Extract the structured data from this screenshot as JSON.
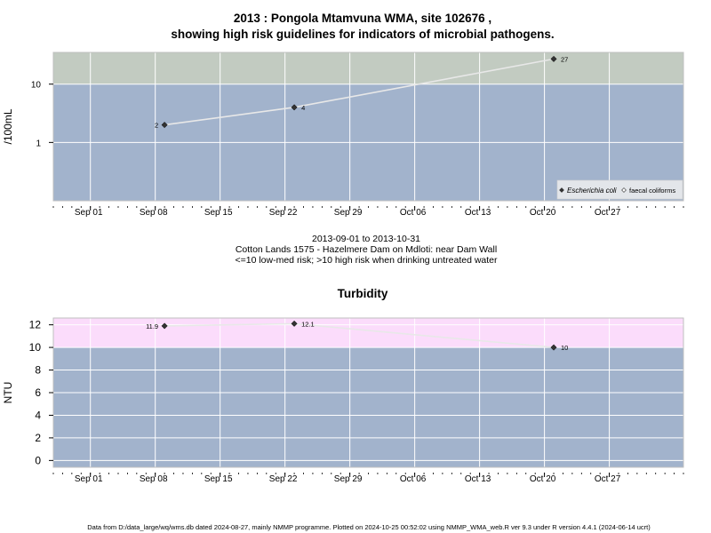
{
  "chart_data": [
    {
      "type": "line",
      "title": "2013 : Pongola Mtamvuna WMA, site 102676 ,",
      "subtitle": "showing high risk guidelines for indicators of microbial pathogens.",
      "ylabel": "/100mL",
      "yscale": "log",
      "ylim": [
        0.1,
        35
      ],
      "yticks": [
        1,
        10
      ],
      "xlim": [
        "2013-08-28",
        "2013-11-04"
      ],
      "xticks": [
        {
          "date": "2013-09-01",
          "label": "Sep 01"
        },
        {
          "date": "2013-09-08",
          "label": "Sep 08"
        },
        {
          "date": "2013-09-15",
          "label": "Sep 15"
        },
        {
          "date": "2013-09-22",
          "label": "Sep 22"
        },
        {
          "date": "2013-09-29",
          "label": "Sep 29"
        },
        {
          "date": "2013-10-06",
          "label": "Oct 06"
        },
        {
          "date": "2013-10-13",
          "label": "Oct 13"
        },
        {
          "date": "2013-10-20",
          "label": "Oct 20"
        },
        {
          "date": "2013-10-27",
          "label": "Oct 27"
        }
      ],
      "bands": [
        {
          "from": 0.1,
          "to": 10,
          "color": "#a2b3cc"
        },
        {
          "from": 10,
          "to": 35,
          "color": "#c2cbc1"
        }
      ],
      "series": [
        {
          "name": "Escherichia coli",
          "x": [
            "2013-09-09",
            "2013-09-23",
            "2013-10-21"
          ],
          "values": [
            2,
            4,
            27
          ],
          "labels": [
            "2",
            "4",
            "27"
          ]
        }
      ],
      "legend": {
        "position": "bottom-right",
        "entries": [
          {
            "label": "Escherichia coli",
            "marker": "filled-diamond"
          },
          {
            "label": "faecal coliforms",
            "marker": "open-diamond"
          }
        ]
      },
      "caption_lines": [
        "2013-09-01 to 2013-10-31",
        "Cotton Lands 1575 - Hazelmere Dam on Mdloti: near Dam Wall",
        "<=10 low-med risk; >10 high risk when drinking untreated water"
      ]
    },
    {
      "type": "line",
      "title": "Turbidity",
      "ylabel": "NTU",
      "ylim": [
        -0.6,
        12.6
      ],
      "yticks": [
        0,
        2,
        4,
        6,
        8,
        10,
        12
      ],
      "xlim": [
        "2013-08-28",
        "2013-11-04"
      ],
      "xticks": [
        {
          "date": "2013-09-01",
          "label": "Sep 01"
        },
        {
          "date": "2013-09-08",
          "label": "Sep 08"
        },
        {
          "date": "2013-09-15",
          "label": "Sep 15"
        },
        {
          "date": "2013-09-22",
          "label": "Sep 22"
        },
        {
          "date": "2013-09-29",
          "label": "Sep 29"
        },
        {
          "date": "2013-10-06",
          "label": "Oct 06"
        },
        {
          "date": "2013-10-13",
          "label": "Oct 13"
        },
        {
          "date": "2013-10-20",
          "label": "Oct 20"
        },
        {
          "date": "2013-10-27",
          "label": "Oct 27"
        }
      ],
      "bands": [
        {
          "from": -0.6,
          "to": 10,
          "color": "#a2b3cc"
        },
        {
          "from": 10,
          "to": 12.6,
          "color": "#fbdcfb"
        }
      ],
      "series": [
        {
          "name": "",
          "x": [
            "2013-09-09",
            "2013-09-23",
            "2013-10-21"
          ],
          "values": [
            11.9,
            12.1,
            10
          ],
          "labels": [
            "11.9",
            "12.1",
            "10"
          ]
        }
      ]
    }
  ],
  "footer": "Data from D:/data_large/wq/wms.db dated 2024-08-27, mainly NMMP programme. Plotted on 2024-10-25 00:52:02 using NMMP_WMA_web.R ver 9.3 under R version 4.4.1 (2024-06-14 ucrt)"
}
